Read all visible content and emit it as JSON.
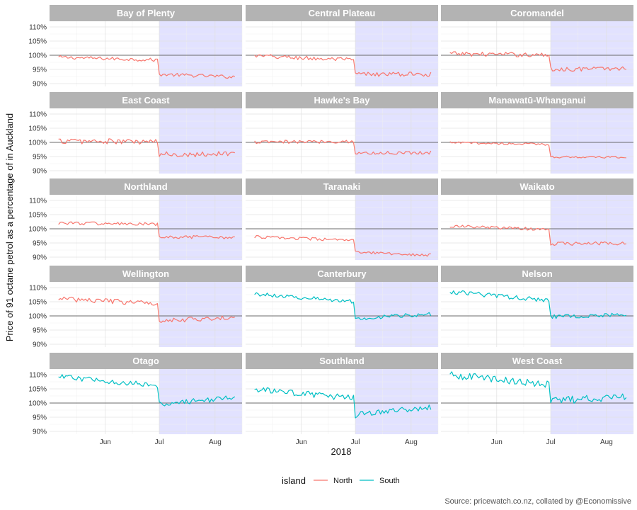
{
  "chart_data": {
    "type": "line",
    "layout": "facet_wrap",
    "ylabel": "Price of 91 octane petrol as a percentage of in Auckland",
    "xlabel": "2018",
    "caption": "Source: pricewatch.co.nz, collated by @Economissive",
    "x_range": [
      "2018-05-01",
      "2018-08-16"
    ],
    "x_ticks": [
      {
        "date": "2018-06-01",
        "label": "Jun"
      },
      {
        "date": "2018-07-01",
        "label": "Jul"
      },
      {
        "date": "2018-08-01",
        "label": "Aug"
      }
    ],
    "y_ticks": [
      {
        "value": 90,
        "label": "90%"
      },
      {
        "value": 95,
        "label": "95%"
      },
      {
        "value": 100,
        "label": "100%"
      },
      {
        "value": 105,
        "label": "105%"
      },
      {
        "value": 110,
        "label": "110%"
      }
    ],
    "ylim": [
      89,
      112
    ],
    "reference_line": 100,
    "shaded_from": "2018-07-01",
    "legend": {
      "title": "island",
      "entries": [
        {
          "name": "North",
          "color": "#F8766D"
        },
        {
          "name": "South",
          "color": "#00BFC4"
        }
      ]
    },
    "panels": [
      {
        "region": "Bay of Plenty",
        "island": "North",
        "before": 98.8,
        "after": 92.8,
        "trend_before": -1.0,
        "trend_after": -0.9,
        "noise": 0.6
      },
      {
        "region": "Central Plateau",
        "island": "North",
        "before": 99.0,
        "after": 93.3,
        "trend_before": -1.5,
        "trend_after": 0.0,
        "noise": 0.8
      },
      {
        "region": "Coromandel",
        "island": "North",
        "before": 100.3,
        "after": 95.2,
        "trend_before": -0.5,
        "trend_after": 0.3,
        "noise": 0.8
      },
      {
        "region": "East Coast",
        "island": "North",
        "before": 100.3,
        "after": 95.9,
        "trend_before": -0.4,
        "trend_after": 0.4,
        "noise": 1.0
      },
      {
        "region": "Hawke's Bay",
        "island": "North",
        "before": 100.2,
        "after": 96.3,
        "trend_before": 0.3,
        "trend_after": 0.3,
        "noise": 0.6
      },
      {
        "region": "Manawatū-Whanganui",
        "island": "North",
        "before": 99.6,
        "after": 94.8,
        "trend_before": -0.6,
        "trend_after": -0.2,
        "noise": 0.4
      },
      {
        "region": "Northland",
        "island": "North",
        "before": 101.8,
        "after": 97.0,
        "trend_before": -0.6,
        "trend_after": 0.0,
        "noise": 0.6
      },
      {
        "region": "Taranaki",
        "island": "North",
        "before": 96.5,
        "after": 91.2,
        "trend_before": -1.3,
        "trend_after": -1.0,
        "noise": 0.5
      },
      {
        "region": "Waikato",
        "island": "North",
        "before": 100.3,
        "after": 94.8,
        "trend_before": -1.2,
        "trend_after": 0.2,
        "noise": 0.6
      },
      {
        "region": "Wellington",
        "island": "North",
        "before": 105.2,
        "after": 98.9,
        "trend_before": -1.8,
        "trend_after": 0.8,
        "noise": 0.9
      },
      {
        "region": "Canterbury",
        "island": "South",
        "before": 106.4,
        "after": 99.9,
        "trend_before": -2.8,
        "trend_after": 1.6,
        "noise": 0.7
      },
      {
        "region": "Nelson",
        "island": "South",
        "before": 107.0,
        "after": 100.1,
        "trend_before": -3.0,
        "trend_after": 0.8,
        "noise": 0.8
      },
      {
        "region": "Otago",
        "island": "South",
        "before": 107.7,
        "after": 100.8,
        "trend_before": -3.2,
        "trend_after": 2.2,
        "noise": 0.9
      },
      {
        "region": "Southland",
        "island": "South",
        "before": 103.2,
        "after": 97.2,
        "trend_before": -3.0,
        "trend_after": 3.0,
        "noise": 1.1
      },
      {
        "region": "West Coast",
        "island": "South",
        "before": 108.2,
        "after": 101.5,
        "trend_before": -3.5,
        "trend_after": 1.5,
        "noise": 1.3
      }
    ]
  }
}
